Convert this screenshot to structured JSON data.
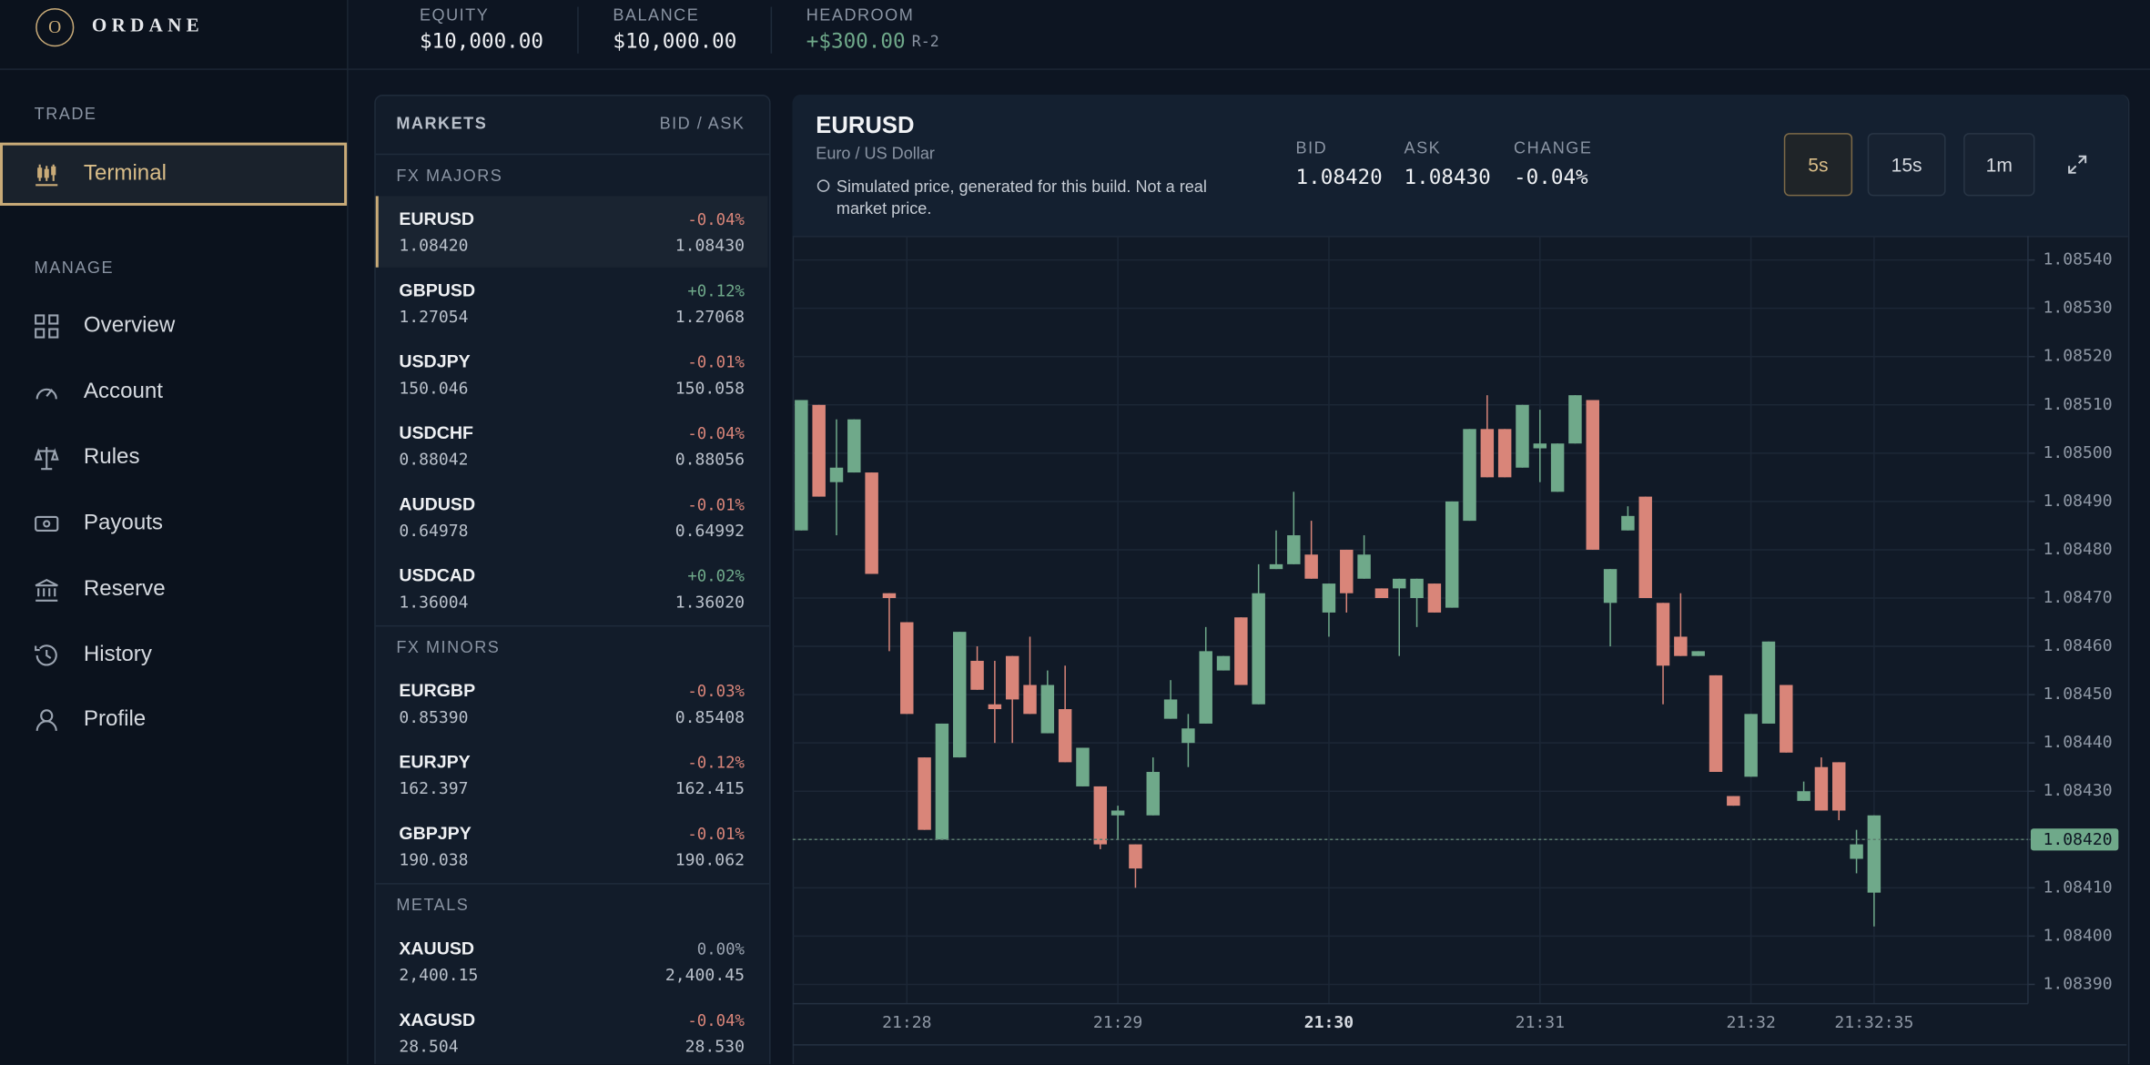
{
  "brand": {
    "initial": "O",
    "name": "ORDANE"
  },
  "sidebar": {
    "sections": [
      {
        "label": "TRADE",
        "items": [
          {
            "label": "Terminal",
            "active": true
          }
        ]
      },
      {
        "label": "MANAGE",
        "items": [
          {
            "label": "Overview"
          },
          {
            "label": "Account"
          },
          {
            "label": "Rules"
          },
          {
            "label": "Payouts"
          },
          {
            "label": "Reserve"
          },
          {
            "label": "History"
          },
          {
            "label": "Profile"
          }
        ]
      }
    ]
  },
  "account": [
    {
      "label": "EQUITY",
      "value": "$10,000.00"
    },
    {
      "label": "BALANCE",
      "value": "$10,000.00"
    },
    {
      "label": "HEADROOM",
      "value": "+$300.00",
      "suffix": "R-2"
    }
  ],
  "markets": {
    "title": "MARKETS",
    "columns": "BID / ASK",
    "groups": [
      {
        "name": "FX MAJORS",
        "rows": [
          {
            "symbol": "EURUSD",
            "change": "-0.04%",
            "bid": "1.08420",
            "ask": "1.08430",
            "selected": true
          },
          {
            "symbol": "GBPUSD",
            "change": "+0.12%",
            "bid": "1.27054",
            "ask": "1.27068"
          },
          {
            "symbol": "USDJPY",
            "change": "-0.01%",
            "bid": "150.046",
            "ask": "150.058"
          },
          {
            "symbol": "USDCHF",
            "change": "-0.04%",
            "bid": "0.88042",
            "ask": "0.88056"
          },
          {
            "symbol": "AUDUSD",
            "change": "-0.01%",
            "bid": "0.64978",
            "ask": "0.64992"
          },
          {
            "symbol": "USDCAD",
            "change": "+0.02%",
            "bid": "1.36004",
            "ask": "1.36020"
          }
        ]
      },
      {
        "name": "FX MINORS",
        "rows": [
          {
            "symbol": "EURGBP",
            "change": "-0.03%",
            "bid": "0.85390",
            "ask": "0.85408"
          },
          {
            "symbol": "EURJPY",
            "change": "-0.12%",
            "bid": "162.397",
            "ask": "162.415"
          },
          {
            "symbol": "GBPJPY",
            "change": "-0.01%",
            "bid": "190.038",
            "ask": "190.062"
          }
        ]
      },
      {
        "name": "METALS",
        "rows": [
          {
            "symbol": "XAUUSD",
            "change": "0.00%",
            "bid": "2,400.15",
            "ask": "2,400.45"
          },
          {
            "symbol": "XAGUSD",
            "change": "-0.04%",
            "bid": "28.504",
            "ask": "28.530"
          }
        ]
      }
    ]
  },
  "instrument": {
    "symbol": "EURUSD",
    "name": "Euro / US Dollar",
    "note": "Simulated price, generated for this build. Not a real market price.",
    "quotes": [
      {
        "label": "BID",
        "value": "1.08420"
      },
      {
        "label": "ASK",
        "value": "1.08430"
      },
      {
        "label": "CHANGE",
        "value": "-0.04%"
      }
    ]
  },
  "timeframes": [
    {
      "label": "5s",
      "active": true
    },
    {
      "label": "15s"
    },
    {
      "label": "1m"
    }
  ],
  "chart_data": {
    "type": "candlestick",
    "up_color": "#6fa98a",
    "down_color": "#d98579",
    "candles": [
      [
        1.08484,
        1.08511,
        1.08484,
        1.08511
      ],
      [
        1.0851,
        1.0851,
        1.08491,
        1.08491
      ],
      [
        1.08494,
        1.08507,
        1.08483,
        1.08497
      ],
      [
        1.08496,
        1.08507,
        1.08496,
        1.08507
      ],
      [
        1.08496,
        1.08496,
        1.08475,
        1.08475
      ],
      [
        1.08471,
        1.08471,
        1.08459,
        1.0847
      ],
      [
        1.08465,
        1.08465,
        1.08446,
        1.08446
      ],
      [
        1.08437,
        1.08437,
        1.08422,
        1.08422
      ],
      [
        1.0842,
        1.08444,
        1.0842,
        1.08444
      ],
      [
        1.08437,
        1.08463,
        1.08437,
        1.08463
      ],
      [
        1.08457,
        1.0846,
        1.08451,
        1.08451
      ],
      [
        1.08448,
        1.08457,
        1.0844,
        1.08447
      ],
      [
        1.08458,
        1.08458,
        1.0844,
        1.08449
      ],
      [
        1.08452,
        1.08462,
        1.08446,
        1.08446
      ],
      [
        1.08442,
        1.08455,
        1.08442,
        1.08452
      ],
      [
        1.08447,
        1.08456,
        1.08436,
        1.08436
      ],
      [
        1.08431,
        1.08439,
        1.08431,
        1.08439
      ],
      [
        1.08431,
        1.08431,
        1.08418,
        1.08419
      ],
      [
        1.08425,
        1.08427,
        1.0842,
        1.08426
      ],
      [
        1.08419,
        1.08419,
        1.0841,
        1.08414
      ],
      [
        1.08425,
        1.08437,
        1.08425,
        1.08434
      ],
      [
        1.08445,
        1.08453,
        1.08445,
        1.08449
      ],
      [
        1.0844,
        1.08446,
        1.08435,
        1.08443
      ],
      [
        1.08444,
        1.08464,
        1.08444,
        1.08459
      ],
      [
        1.08455,
        1.08458,
        1.08455,
        1.08458
      ],
      [
        1.08466,
        1.08466,
        1.08452,
        1.08452
      ],
      [
        1.08448,
        1.08477,
        1.08448,
        1.08471
      ],
      [
        1.08476,
        1.08484,
        1.08476,
        1.08477
      ],
      [
        1.08477,
        1.08492,
        1.08477,
        1.08483
      ],
      [
        1.08479,
        1.08486,
        1.08474,
        1.08474
      ],
      [
        1.08467,
        1.08473,
        1.08462,
        1.08473
      ],
      [
        1.0848,
        1.0848,
        1.08467,
        1.08471
      ],
      [
        1.08474,
        1.08483,
        1.08474,
        1.08479
      ],
      [
        1.08472,
        1.08472,
        1.0847,
        1.0847
      ],
      [
        1.08472,
        1.08474,
        1.08458,
        1.08474
      ],
      [
        1.0847,
        1.08474,
        1.08464,
        1.08474
      ],
      [
        1.08473,
        1.08473,
        1.08467,
        1.08467
      ],
      [
        1.08468,
        1.0849,
        1.08468,
        1.0849
      ],
      [
        1.08486,
        1.08505,
        1.08486,
        1.08505
      ],
      [
        1.08505,
        1.08512,
        1.08495,
        1.08495
      ],
      [
        1.08505,
        1.08505,
        1.08495,
        1.08495
      ],
      [
        1.08497,
        1.0851,
        1.08497,
        1.0851
      ],
      [
        1.08501,
        1.08509,
        1.08494,
        1.08502
      ],
      [
        1.08492,
        1.08502,
        1.08492,
        1.08502
      ],
      [
        1.08502,
        1.08512,
        1.08502,
        1.08512
      ],
      [
        1.08511,
        1.08511,
        1.0848,
        1.0848
      ],
      [
        1.08469,
        1.08476,
        1.0846,
        1.08476
      ],
      [
        1.08484,
        1.08489,
        1.08484,
        1.08487
      ],
      [
        1.08491,
        1.08491,
        1.0847,
        1.0847
      ],
      [
        1.08469,
        1.08469,
        1.08448,
        1.08456
      ],
      [
        1.08462,
        1.08471,
        1.08458,
        1.08458
      ],
      [
        1.08458,
        1.08459,
        1.08458,
        1.08459
      ],
      [
        1.08454,
        1.08454,
        1.08434,
        1.08434
      ],
      [
        1.08429,
        1.08429,
        1.08427,
        1.08427
      ],
      [
        1.08433,
        1.08446,
        1.08433,
        1.08446
      ],
      [
        1.08444,
        1.08461,
        1.08444,
        1.08461
      ],
      [
        1.08452,
        1.08452,
        1.08438,
        1.08438
      ],
      [
        1.08428,
        1.08432,
        1.08428,
        1.0843
      ],
      [
        1.08435,
        1.08437,
        1.08426,
        1.08426
      ],
      [
        1.08436,
        1.08436,
        1.08424,
        1.08426
      ],
      [
        1.08416,
        1.08422,
        1.08413,
        1.08419
      ],
      [
        1.08409,
        1.08425,
        1.08402,
        1.08425
      ]
    ],
    "xlim": [
      -0.5,
      69.75
    ],
    "xticks": [
      {
        "value": 6,
        "label": "21:28"
      },
      {
        "value": 18,
        "label": "21:29"
      },
      {
        "value": 30,
        "label": "21:30",
        "bold": true
      },
      {
        "value": 42,
        "label": "21:31"
      },
      {
        "value": 54,
        "label": "21:32"
      },
      {
        "value": 61,
        "label": "21:32:35"
      }
    ],
    "ylim": [
      1.08386,
      1.08545
    ],
    "yticks": [
      {
        "value": 1.0854,
        "label": "1.08540"
      },
      {
        "value": 1.0853,
        "label": "1.08530"
      },
      {
        "value": 1.0852,
        "label": "1.08520"
      },
      {
        "value": 1.0851,
        "label": "1.08510"
      },
      {
        "value": 1.085,
        "label": "1.08500"
      },
      {
        "value": 1.0849,
        "label": "1.08490"
      },
      {
        "value": 1.0848,
        "label": "1.08480"
      },
      {
        "value": 1.0847,
        "label": "1.08470"
      },
      {
        "value": 1.0846,
        "label": "1.08460"
      },
      {
        "value": 1.0845,
        "label": "1.08450"
      },
      {
        "value": 1.0844,
        "label": "1.08440"
      },
      {
        "value": 1.0843,
        "label": "1.08430"
      },
      {
        "value": 1.0842,
        "label": "1.08420"
      },
      {
        "value": 1.0841,
        "label": "1.08410"
      },
      {
        "value": 1.084,
        "label": "1.08400"
      },
      {
        "value": 1.0839,
        "label": "1.08390"
      }
    ],
    "last_price": {
      "value": 1.0842,
      "label": "1.08420"
    },
    "grid": true
  }
}
